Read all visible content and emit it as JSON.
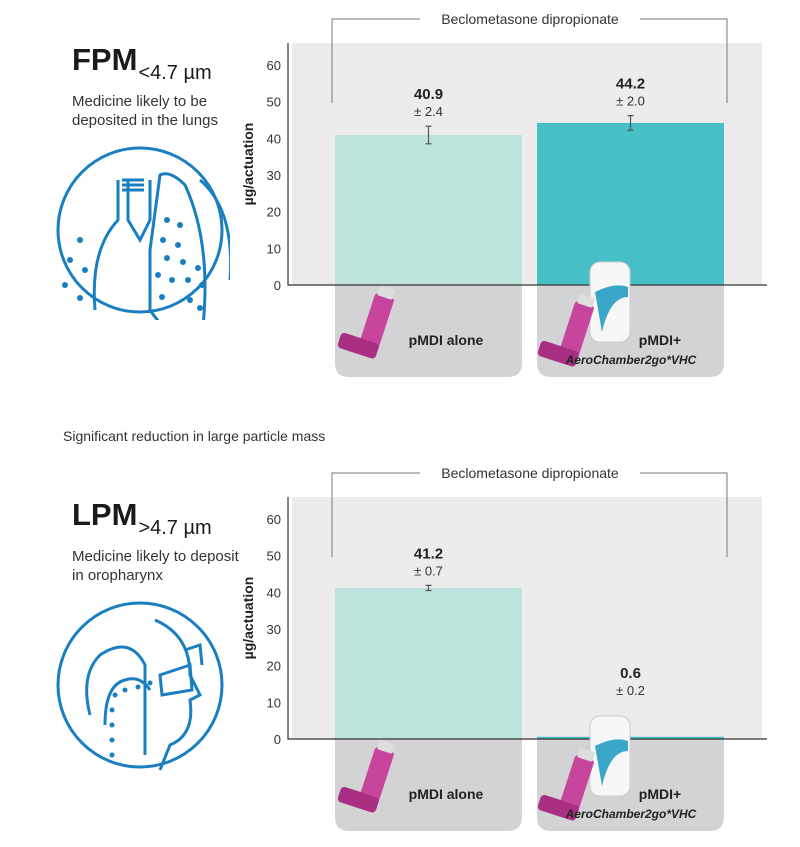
{
  "panels": [
    {
      "title": "FPM",
      "subscript": "<4.7 µm",
      "description": "Medicine likely to be deposited in the lungs",
      "icon": "lungs-icon"
    },
    {
      "title": "LPM",
      "subscript": ">4.7 µm",
      "description": "Medicine likely to deposit in oropharynx",
      "icon": "oropharynx-inhalation-icon"
    }
  ],
  "note": "Significant reduction in large particle mass",
  "colors": {
    "bar_alone": "#bde4dc",
    "bar_chamber": "#47bfc7",
    "plot_bg": "#ececec",
    "label_bg": "#d3d3d5",
    "icon_blue": "#1a7fc1",
    "inhaler": "#c7459d"
  },
  "chart_data": [
    {
      "type": "bar",
      "title": "Beclometasone dipropionate",
      "ylabel": "µg/actuation",
      "ylim": [
        0,
        65
      ],
      "yticks": [
        "0",
        "10",
        "20",
        "30",
        "40",
        "50",
        "60"
      ],
      "categories": [
        {
          "label": "pMDI alone",
          "sublabel": ""
        },
        {
          "label": "pMDI+",
          "sublabel": "AeroChamber2go*VHC"
        }
      ],
      "values": [
        40.9,
        44.2
      ],
      "errors": [
        2.4,
        2.0
      ],
      "value_labels": [
        "40.9",
        "44.2"
      ],
      "error_labels": [
        "± 2.4",
        "± 2.0"
      ]
    },
    {
      "type": "bar",
      "title": "Beclometasone dipropionate",
      "ylabel": "µg/actuation",
      "ylim": [
        0,
        65
      ],
      "yticks": [
        "0",
        "10",
        "20",
        "30",
        "40",
        "50",
        "60"
      ],
      "categories": [
        {
          "label": "pMDI alone",
          "sublabel": ""
        },
        {
          "label": "pMDI+",
          "sublabel": "AeroChamber2go*VHC"
        }
      ],
      "values": [
        41.2,
        0.6
      ],
      "errors": [
        0.7,
        0.2
      ],
      "value_labels": [
        "41.2",
        "0.6"
      ],
      "error_labels": [
        "± 0.7",
        "± 0.2"
      ]
    }
  ]
}
